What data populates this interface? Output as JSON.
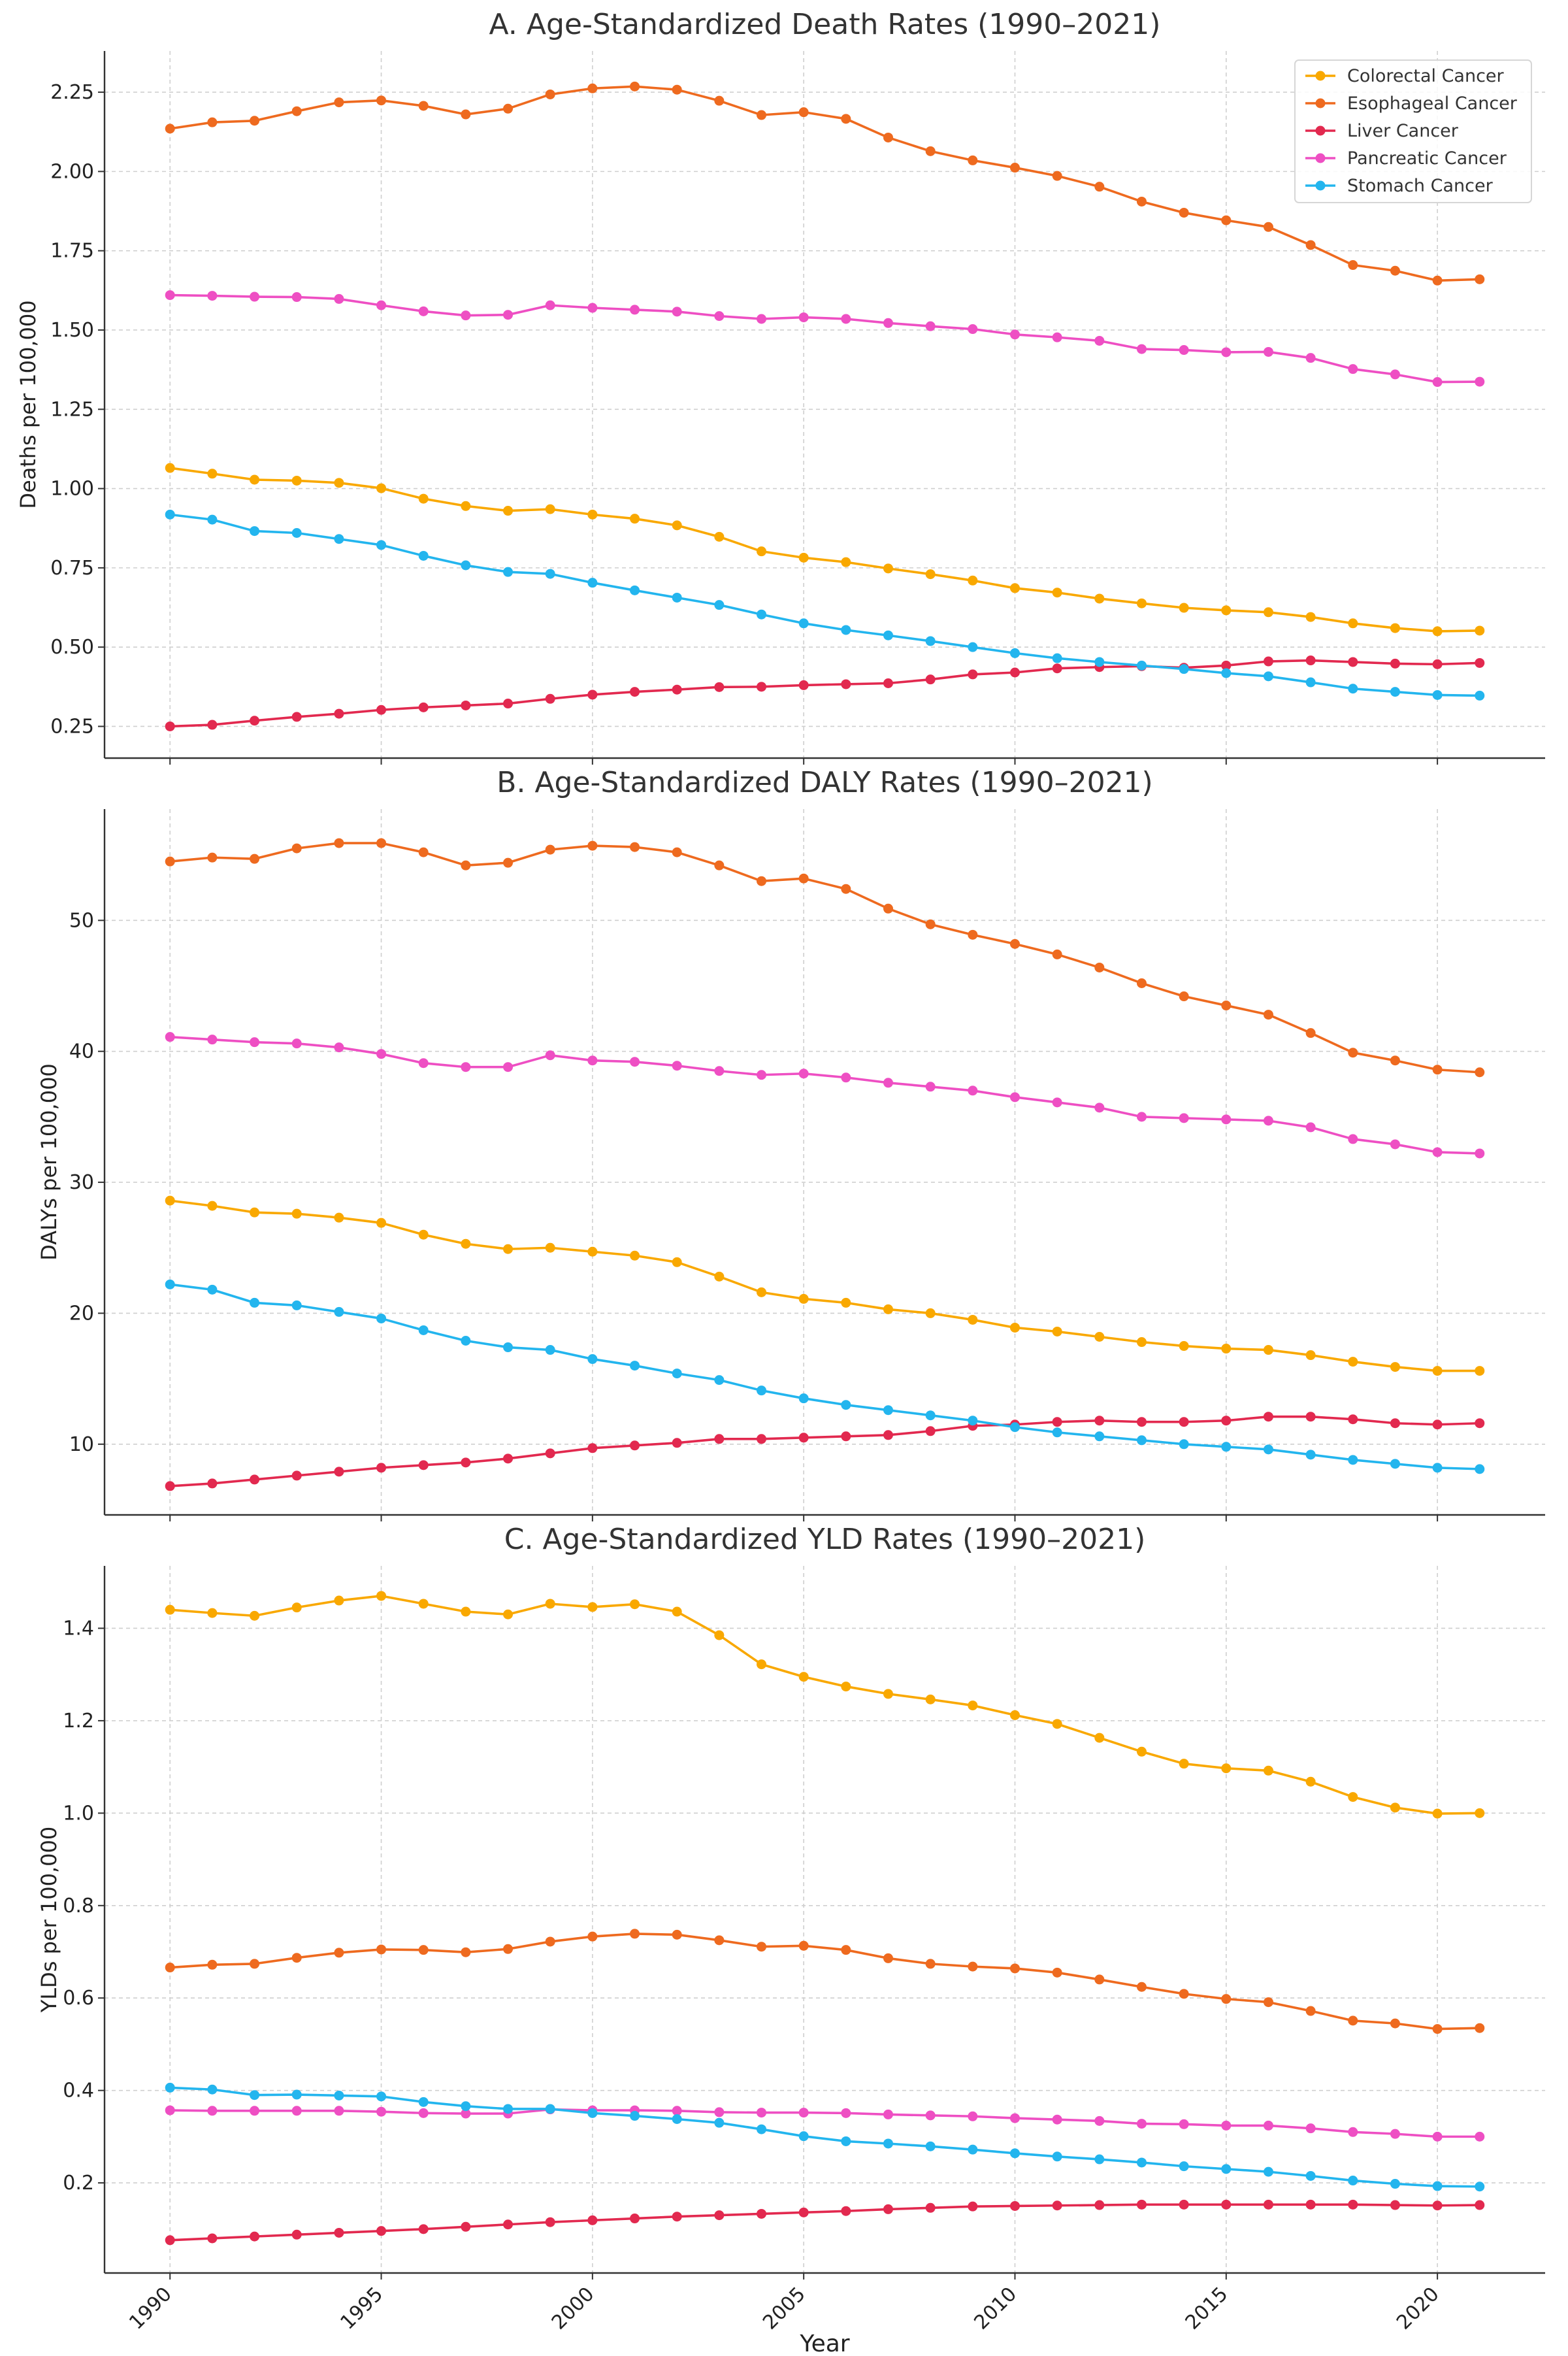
{
  "chart_data": [
    {
      "type": "line",
      "title": "A. Age-Standardized Death Rates (1990–2021)",
      "xlabel": "",
      "ylabel": "Deaths per 100,000",
      "x": [
        1990,
        1991,
        1992,
        1993,
        1994,
        1995,
        1996,
        1997,
        1998,
        1999,
        2000,
        2001,
        2002,
        2003,
        2004,
        2005,
        2006,
        2007,
        2008,
        2009,
        2010,
        2011,
        2012,
        2013,
        2014,
        2015,
        2016,
        2017,
        2018,
        2019,
        2020,
        2021
      ],
      "xticks": [
        1990,
        1995,
        2000,
        2005,
        2010,
        2015,
        2020
      ],
      "ylim": [
        0.15,
        2.38
      ],
      "yticks": [
        0.25,
        0.5,
        0.75,
        1.0,
        1.25,
        1.5,
        1.75,
        2.0,
        2.25
      ],
      "ytick_labels": [
        "0.25",
        "0.50",
        "0.75",
        "1.00",
        "1.25",
        "1.50",
        "1.75",
        "2.00",
        "2.25"
      ],
      "grid": true,
      "legend": "top-right",
      "series": [
        {
          "name": "Colorectal Cancer",
          "color": "#F9A800",
          "values": [
            1.065,
            1.047,
            1.028,
            1.025,
            1.018,
            1.001,
            0.968,
            0.945,
            0.93,
            0.935,
            0.918,
            0.905,
            0.884,
            0.848,
            0.802,
            0.782,
            0.768,
            0.748,
            0.73,
            0.71,
            0.686,
            0.672,
            0.653,
            0.638,
            0.624,
            0.616,
            0.61,
            0.595,
            0.575,
            0.56,
            0.55,
            0.552
          ]
        },
        {
          "name": "Esophageal Cancer",
          "color": "#EE6A1F",
          "values": [
            2.135,
            2.155,
            2.16,
            2.19,
            2.218,
            2.224,
            2.207,
            2.18,
            2.198,
            2.243,
            2.262,
            2.268,
            2.258,
            2.223,
            2.178,
            2.187,
            2.166,
            2.107,
            2.064,
            2.035,
            2.012,
            1.986,
            1.952,
            1.905,
            1.87,
            1.846,
            1.825,
            1.768,
            1.705,
            1.687,
            1.656,
            1.66
          ]
        },
        {
          "name": "Liver Cancer",
          "color": "#E2294F",
          "values": [
            0.25,
            0.255,
            0.268,
            0.28,
            0.29,
            0.302,
            0.31,
            0.316,
            0.322,
            0.337,
            0.35,
            0.359,
            0.366,
            0.374,
            0.375,
            0.38,
            0.383,
            0.386,
            0.398,
            0.414,
            0.42,
            0.433,
            0.437,
            0.44,
            0.435,
            0.442,
            0.455,
            0.458,
            0.453,
            0.448,
            0.446,
            0.45
          ]
        },
        {
          "name": "Pancreatic Cancer",
          "color": "#EE4FC3",
          "values": [
            1.61,
            1.608,
            1.605,
            1.604,
            1.598,
            1.578,
            1.559,
            1.546,
            1.548,
            1.578,
            1.57,
            1.564,
            1.558,
            1.544,
            1.535,
            1.54,
            1.535,
            1.522,
            1.512,
            1.503,
            1.486,
            1.477,
            1.466,
            1.44,
            1.437,
            1.43,
            1.431,
            1.412,
            1.377,
            1.36,
            1.336,
            1.337
          ]
        },
        {
          "name": "Stomach Cancer",
          "color": "#23B5EE",
          "values": [
            0.918,
            0.902,
            0.866,
            0.86,
            0.841,
            0.822,
            0.788,
            0.758,
            0.737,
            0.731,
            0.703,
            0.679,
            0.656,
            0.633,
            0.603,
            0.575,
            0.554,
            0.537,
            0.519,
            0.5,
            0.481,
            0.465,
            0.453,
            0.442,
            0.431,
            0.418,
            0.408,
            0.389,
            0.369,
            0.359,
            0.349,
            0.347
          ]
        }
      ]
    },
    {
      "type": "line",
      "title": "B. Age-Standardized DALY Rates (1990–2021)",
      "xlabel": "",
      "ylabel": "DALYs per 100,000",
      "x": [
        1990,
        1991,
        1992,
        1993,
        1994,
        1995,
        1996,
        1997,
        1998,
        1999,
        2000,
        2001,
        2002,
        2003,
        2004,
        2005,
        2006,
        2007,
        2008,
        2009,
        2010,
        2011,
        2012,
        2013,
        2014,
        2015,
        2016,
        2017,
        2018,
        2019,
        2020,
        2021
      ],
      "xticks": [
        1990,
        1995,
        2000,
        2005,
        2010,
        2015,
        2020
      ],
      "ylim": [
        4.6,
        58.5
      ],
      "yticks": [
        10,
        20,
        30,
        40,
        50
      ],
      "ytick_labels": [
        "10",
        "20",
        "30",
        "40",
        "50"
      ],
      "grid": true,
      "series": [
        {
          "name": "Colorectal Cancer",
          "color": "#F9A800",
          "values": [
            28.6,
            28.2,
            27.7,
            27.6,
            27.3,
            26.9,
            26.0,
            25.3,
            24.9,
            25.0,
            24.7,
            24.4,
            23.9,
            22.8,
            21.6,
            21.1,
            20.8,
            20.3,
            20.0,
            19.5,
            18.9,
            18.6,
            18.2,
            17.8,
            17.5,
            17.3,
            17.2,
            16.8,
            16.3,
            15.9,
            15.6,
            15.6
          ]
        },
        {
          "name": "Esophageal Cancer",
          "color": "#EE6A1F",
          "values": [
            54.5,
            54.8,
            54.7,
            55.5,
            55.9,
            55.9,
            55.2,
            54.2,
            54.4,
            55.4,
            55.7,
            55.6,
            55.2,
            54.2,
            53.0,
            53.2,
            52.4,
            50.9,
            49.7,
            48.9,
            48.2,
            47.4,
            46.4,
            45.2,
            44.2,
            43.5,
            42.8,
            41.4,
            39.9,
            39.3,
            38.6,
            38.4
          ]
        },
        {
          "name": "Liver Cancer",
          "color": "#E2294F",
          "values": [
            6.8,
            7.0,
            7.3,
            7.6,
            7.9,
            8.2,
            8.4,
            8.6,
            8.9,
            9.3,
            9.7,
            9.9,
            10.1,
            10.4,
            10.4,
            10.5,
            10.6,
            10.7,
            11.0,
            11.4,
            11.5,
            11.7,
            11.8,
            11.7,
            11.7,
            11.8,
            12.1,
            12.1,
            11.9,
            11.6,
            11.5,
            11.6
          ]
        },
        {
          "name": "Pancreatic Cancer",
          "color": "#EE4FC3",
          "values": [
            41.1,
            40.9,
            40.7,
            40.6,
            40.3,
            39.8,
            39.1,
            38.8,
            38.8,
            39.7,
            39.3,
            39.2,
            38.9,
            38.5,
            38.2,
            38.3,
            38.0,
            37.6,
            37.3,
            37.0,
            36.5,
            36.1,
            35.7,
            35.0,
            34.9,
            34.8,
            34.7,
            34.2,
            33.3,
            32.9,
            32.3,
            32.2
          ]
        },
        {
          "name": "Stomach Cancer",
          "color": "#23B5EE",
          "values": [
            22.2,
            21.8,
            20.8,
            20.6,
            20.1,
            19.6,
            18.7,
            17.9,
            17.4,
            17.2,
            16.5,
            16.0,
            15.4,
            14.9,
            14.1,
            13.5,
            13.0,
            12.6,
            12.2,
            11.8,
            11.3,
            10.9,
            10.6,
            10.3,
            10.0,
            9.8,
            9.6,
            9.2,
            8.8,
            8.5,
            8.2,
            8.1
          ]
        }
      ]
    },
    {
      "type": "line",
      "title": "C. Age-Standardized YLD Rates (1990–2021)",
      "xlabel": "Year",
      "ylabel": "YLDs per 100,000",
      "x": [
        1990,
        1991,
        1992,
        1993,
        1994,
        1995,
        1996,
        1997,
        1998,
        1999,
        2000,
        2001,
        2002,
        2003,
        2004,
        2005,
        2006,
        2007,
        2008,
        2009,
        2010,
        2011,
        2012,
        2013,
        2014,
        2015,
        2016,
        2017,
        2018,
        2019,
        2020,
        2021
      ],
      "xticks": [
        1990,
        1995,
        2000,
        2005,
        2010,
        2015,
        2020
      ],
      "ylim": [
        0.005,
        1.535
      ],
      "yticks": [
        0.2,
        0.4,
        0.6,
        0.8,
        1.0,
        1.2,
        1.4
      ],
      "ytick_labels": [
        "0.2",
        "0.4",
        "0.6",
        "0.8",
        "1.0",
        "1.2",
        "1.4"
      ],
      "grid": true,
      "series": [
        {
          "name": "Colorectal Cancer",
          "color": "#F9A800",
          "values": [
            1.44,
            1.433,
            1.427,
            1.445,
            1.46,
            1.47,
            1.453,
            1.436,
            1.43,
            1.453,
            1.446,
            1.452,
            1.436,
            1.385,
            1.322,
            1.295,
            1.274,
            1.258,
            1.246,
            1.233,
            1.212,
            1.193,
            1.163,
            1.133,
            1.107,
            1.097,
            1.092,
            1.068,
            1.035,
            1.012,
            0.999,
            1.0
          ]
        },
        {
          "name": "Esophageal Cancer",
          "color": "#EE6A1F",
          "values": [
            0.666,
            0.672,
            0.674,
            0.687,
            0.698,
            0.705,
            0.704,
            0.699,
            0.706,
            0.722,
            0.733,
            0.739,
            0.737,
            0.725,
            0.711,
            0.713,
            0.704,
            0.686,
            0.674,
            0.668,
            0.664,
            0.655,
            0.64,
            0.624,
            0.609,
            0.598,
            0.591,
            0.572,
            0.551,
            0.545,
            0.533,
            0.535
          ]
        },
        {
          "name": "Liver Cancer",
          "color": "#E2294F",
          "values": [
            0.076,
            0.08,
            0.084,
            0.088,
            0.092,
            0.096,
            0.1,
            0.105,
            0.11,
            0.115,
            0.119,
            0.123,
            0.127,
            0.13,
            0.133,
            0.136,
            0.139,
            0.143,
            0.146,
            0.149,
            0.15,
            0.151,
            0.152,
            0.153,
            0.153,
            0.153,
            0.153,
            0.153,
            0.153,
            0.152,
            0.151,
            0.152
          ]
        },
        {
          "name": "Pancreatic Cancer",
          "color": "#EE4FC3",
          "values": [
            0.357,
            0.356,
            0.356,
            0.356,
            0.356,
            0.354,
            0.351,
            0.35,
            0.35,
            0.359,
            0.357,
            0.357,
            0.356,
            0.353,
            0.352,
            0.352,
            0.351,
            0.348,
            0.346,
            0.344,
            0.34,
            0.337,
            0.334,
            0.328,
            0.327,
            0.324,
            0.324,
            0.318,
            0.31,
            0.306,
            0.3,
            0.3
          ]
        },
        {
          "name": "Stomach Cancer",
          "color": "#23B5EE",
          "values": [
            0.406,
            0.402,
            0.39,
            0.391,
            0.389,
            0.387,
            0.375,
            0.366,
            0.36,
            0.36,
            0.351,
            0.345,
            0.338,
            0.33,
            0.316,
            0.301,
            0.29,
            0.285,
            0.279,
            0.272,
            0.264,
            0.257,
            0.251,
            0.244,
            0.236,
            0.23,
            0.224,
            0.215,
            0.205,
            0.198,
            0.193,
            0.192
          ]
        }
      ]
    }
  ]
}
